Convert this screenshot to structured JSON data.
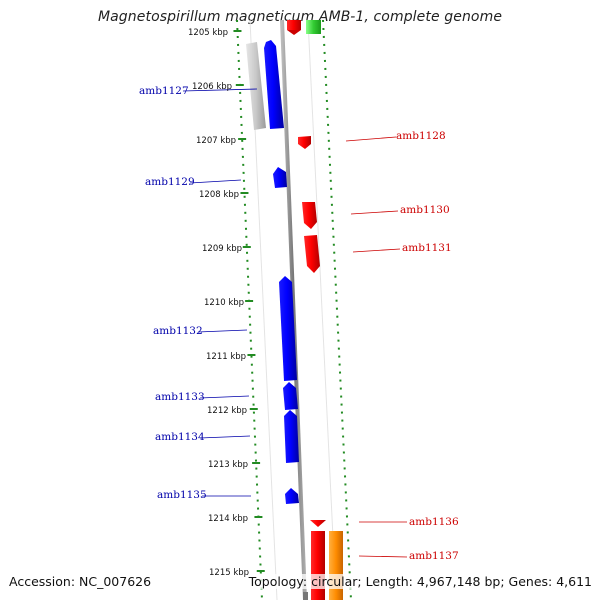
{
  "title": "Magnetospirillum magneticum AMB-1, complete genome",
  "footer": {
    "accession": "Accession: NC_007626",
    "topology": "Topology: circular; Length: 4,967,148 bp; Genes: 4,611"
  },
  "colors": {
    "reverse_strand_gene": "#0000ff",
    "forward_strand_gene": "#ff0000",
    "forward_label": "#cc0000",
    "reverse_label": "#0000aa",
    "rna_gene": "#ff8c00",
    "pseudo_gene": "#c8c8c8",
    "other_feature": "#33cc33",
    "backbone": "#888888",
    "tick": "#228b22"
  },
  "scale": {
    "unit": "kbp",
    "ticks": [
      "1205 kbp",
      "1206 kbp",
      "1207 kbp",
      "1208 kbp",
      "1209 kbp",
      "1210 kbp",
      "1211 kbp",
      "1212 kbp",
      "1213 kbp",
      "1214 kbp",
      "1215 kbp"
    ]
  },
  "genes": [
    {
      "label": "amb1127",
      "strand": "reverse"
    },
    {
      "label": "amb1128",
      "strand": "forward"
    },
    {
      "label": "amb1129",
      "strand": "reverse"
    },
    {
      "label": "amb1130",
      "strand": "forward"
    },
    {
      "label": "amb1131",
      "strand": "forward"
    },
    {
      "label": "amb1132",
      "strand": "reverse"
    },
    {
      "label": "amb1133",
      "strand": "reverse"
    },
    {
      "label": "amb1134",
      "strand": "reverse"
    },
    {
      "label": "amb1135",
      "strand": "reverse"
    },
    {
      "label": "amb1136",
      "strand": "forward"
    },
    {
      "label": "amb1137",
      "strand": "forward"
    }
  ]
}
